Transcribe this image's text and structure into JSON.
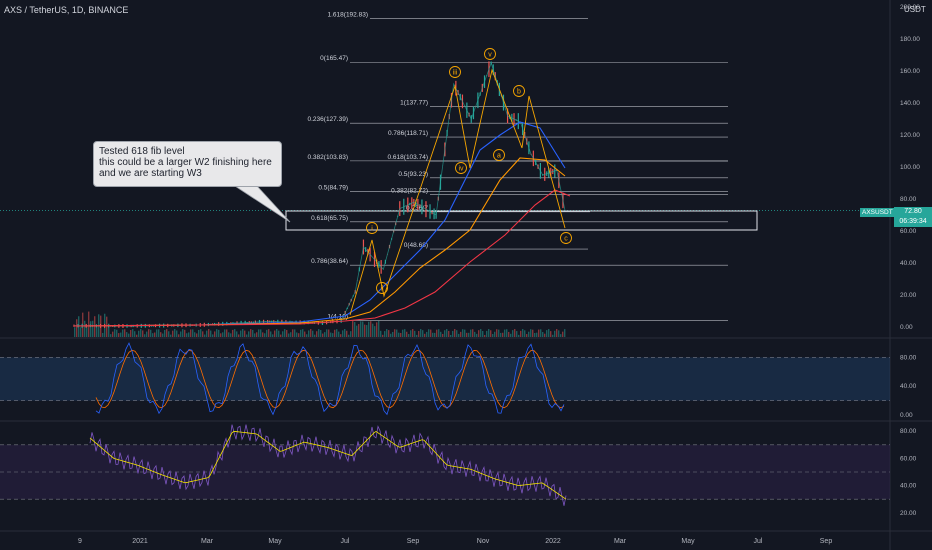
{
  "header": {
    "title": "AXS / TetherUS, 1D, BINANCE",
    "currency": "USDT"
  },
  "price_tag": {
    "symbol": "AXSUSDT",
    "price": "72.80",
    "countdown": "06:39:34"
  },
  "note": {
    "text": "Tested 618 fib level\nthis could be a larger W2 finishing here\nand we are starting W3"
  },
  "colors": {
    "background": "#131722",
    "fib": "#d1d4dc",
    "wave": "#f7a600",
    "ma_blue": "#2962ff",
    "ma_orange": "#ff9800",
    "ma_red": "#f23645",
    "stoch_k": "#2962ff",
    "stoch_d": "#ff6d00",
    "rsi": "#7e57c2",
    "rsi_ma": "#f7e600",
    "price_tag": "#26a69a"
  },
  "fib_levels": [
    {
      "label": "1.618(192.83)",
      "value": 192.83
    },
    {
      "label": "0(165.47)",
      "value": 165.47
    },
    {
      "label": "1(137.77)",
      "value": 137.77
    },
    {
      "label": "0.236(127.39)",
      "value": 127.39
    },
    {
      "label": "0.786(118.71)",
      "value": 118.71
    },
    {
      "label": "0.382(103.83)",
      "value": 103.83
    },
    {
      "label": "0.618(103.74)",
      "value": 103.74
    },
    {
      "label": "0.5(93.23)",
      "value": 93.23
    },
    {
      "label": "0.5(84.79)",
      "value": 84.79
    },
    {
      "label": "0.382(82.72)",
      "value": 82.72
    },
    {
      "label": "0.236(7",
      "value": 72.0
    },
    {
      "label": "0.618(65.75)",
      "value": 65.75
    },
    {
      "label": "0(48.68)",
      "value": 48.68
    },
    {
      "label": "0.786(38.64)",
      "value": 38.64
    },
    {
      "label": "1(4.10)",
      "value": 4.1
    }
  ],
  "wave_labels": [
    "i",
    "ii",
    "iii",
    "iv",
    "v",
    "a",
    "b",
    "c"
  ],
  "price_axis": [
    "200.00",
    "180.00",
    "160.00",
    "140.00",
    "120.00",
    "100.00",
    "80.00",
    "60.00",
    "40.00",
    "20.00",
    "0.00"
  ],
  "stoch_axis": [
    "80.00",
    "40.00",
    "0.00"
  ],
  "rsi_axis": [
    "80.00",
    "60.00",
    "40.00",
    "20.00"
  ],
  "time_axis": [
    "9",
    "2021",
    "Mar",
    "May",
    "Jul",
    "Sep",
    "Nov",
    "2022",
    "Mar",
    "May",
    "Jul",
    "Sep"
  ],
  "chart_data": [
    {
      "type": "line",
      "title": "AXS / TetherUS, 1D, BINANCE",
      "x": [
        "2020-11-15",
        "2021-01-01",
        "2021-03-01",
        "2021-05-01",
        "2021-06-15",
        "2021-07-01",
        "2021-07-13",
        "2021-07-20",
        "2021-08-06",
        "2021-08-20",
        "2021-09-01",
        "2021-09-20",
        "2021-10-05",
        "2021-10-20",
        "2021-11-06",
        "2021-11-20",
        "2021-12-01",
        "2021-12-10",
        "2021-12-20",
        "2022-01-01",
        "2022-01-08"
      ],
      "series": [
        {
          "name": "AXSUSDT",
          "values": [
            0.8,
            0.6,
            1.2,
            3.5,
            2.5,
            3.8,
            22,
            50,
            36,
            74,
            78,
            70,
            152,
            130,
            165,
            132,
            128,
            108,
            95,
            98,
            72.8
          ]
        }
      ],
      "ylim": [
        0,
        200
      ]
    },
    {
      "type": "line",
      "ylim": [
        0,
        100
      ],
      "series": [
        {
          "name": "Stoch %K",
          "values": [
            20,
            85,
            15,
            90,
            30,
            88,
            25,
            80,
            18,
            92,
            40,
            85,
            20,
            88,
            22,
            90,
            35,
            80,
            18,
            85,
            15
          ]
        }
      ]
    },
    {
      "type": "line",
      "ylim": [
        20,
        90
      ],
      "series": [
        {
          "name": "RSI",
          "values": [
            75,
            60,
            55,
            48,
            42,
            46,
            80,
            78,
            65,
            72,
            68,
            62,
            80,
            68,
            74,
            55,
            52,
            45,
            40,
            42,
            30
          ]
        }
      ]
    }
  ]
}
